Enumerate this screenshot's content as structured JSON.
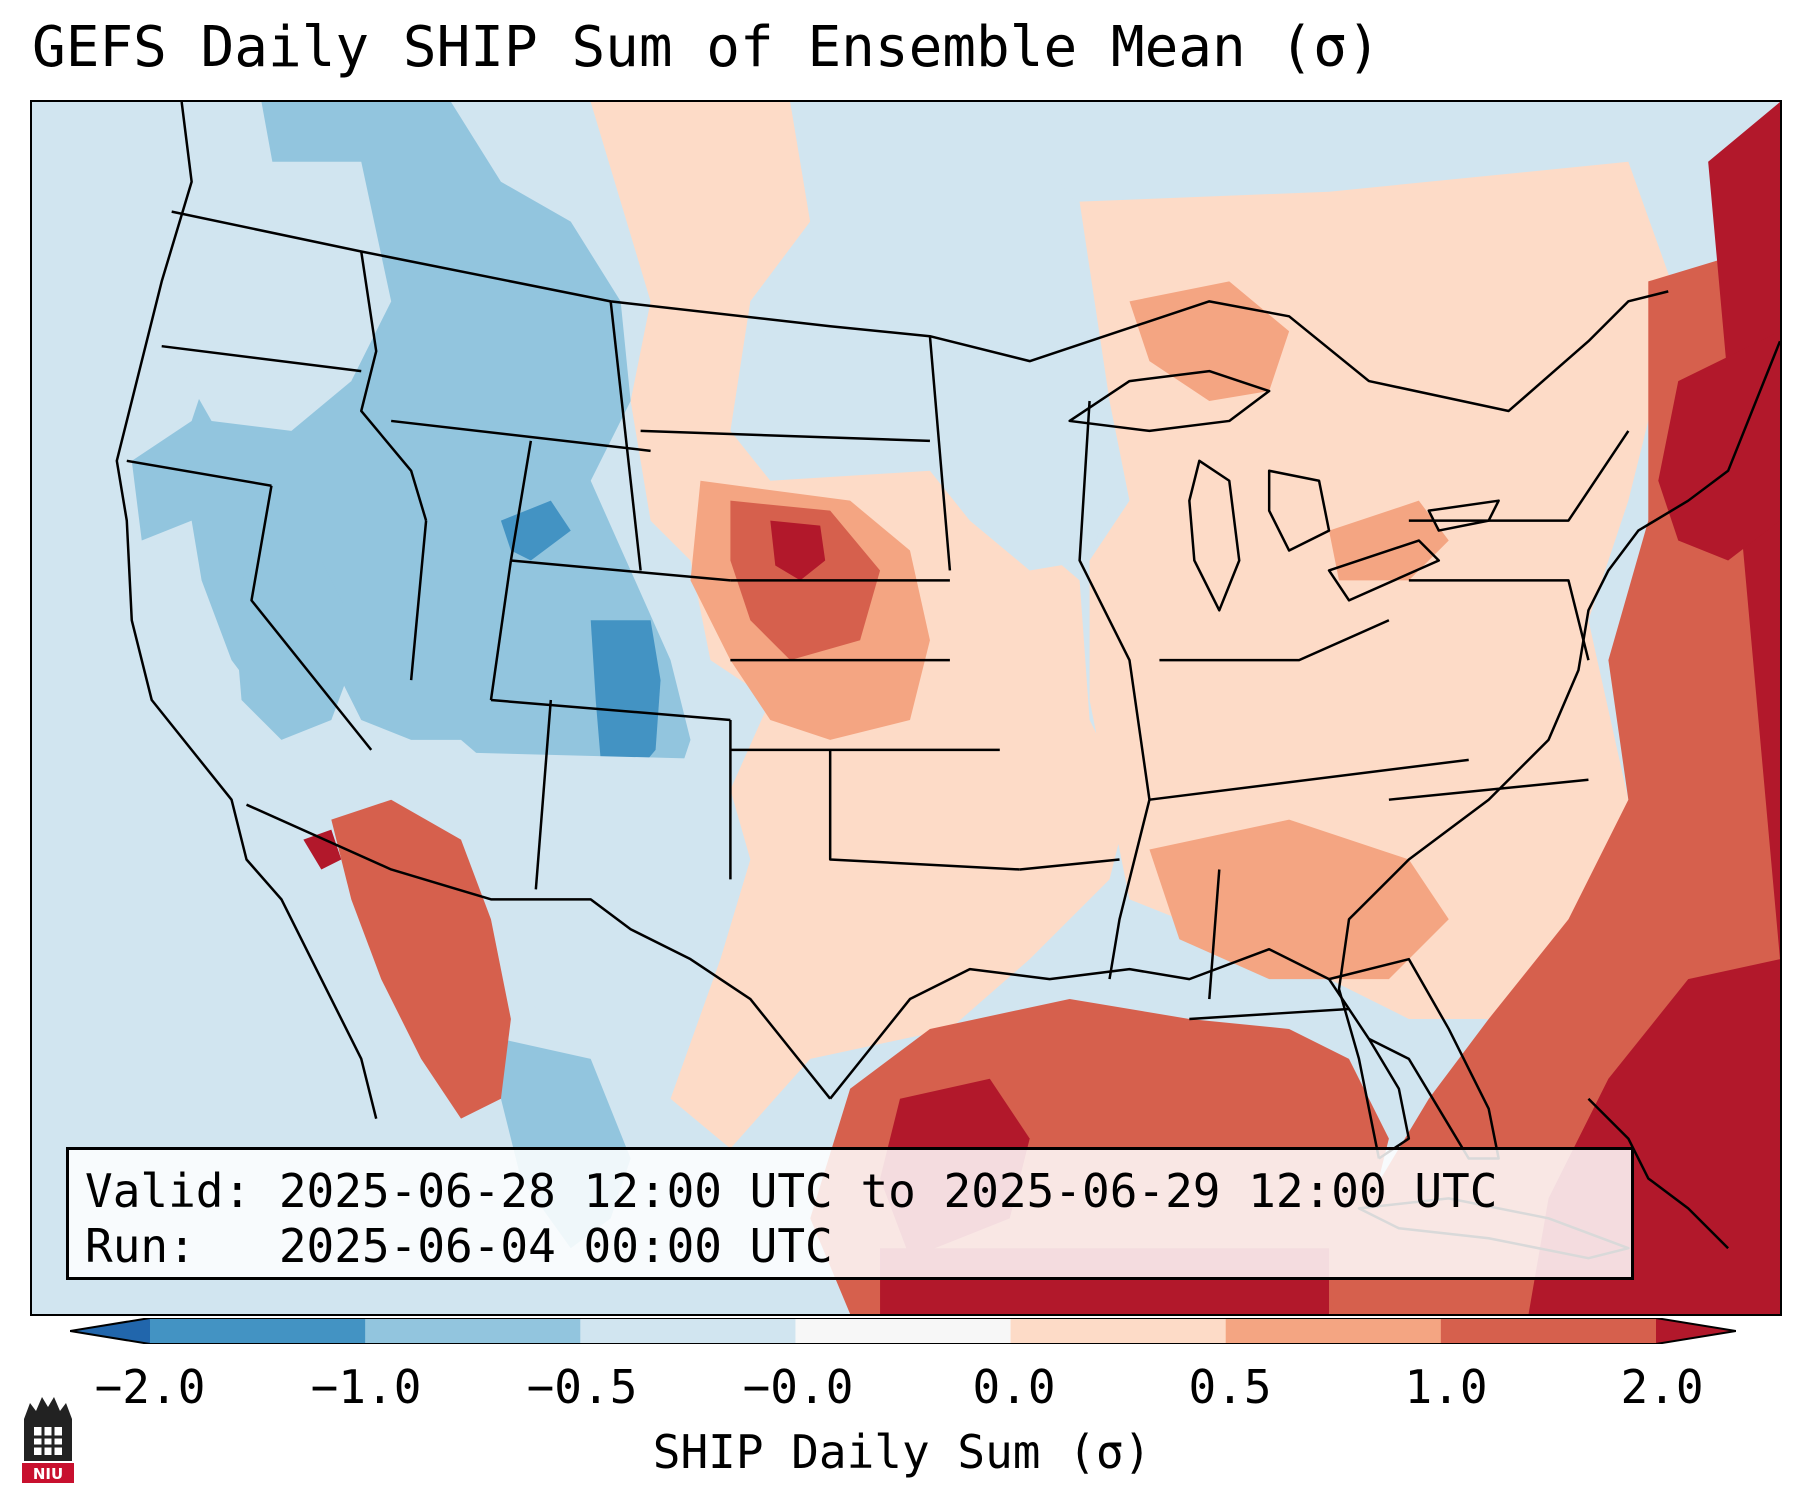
{
  "title": "GEFS Daily SHIP Sum of Ensemble Mean (σ)",
  "info": {
    "valid_line": "Valid: 2025-06-28 12:00 UTC to 2025-06-29 12:00 UTC",
    "run_line": "Run:   2025-06-04 00:00 UTC"
  },
  "colorbar": {
    "label": "SHIP Daily Sum (σ)",
    "ticks": [
      "−2.0",
      "−1.0",
      "−0.5",
      "−0.0",
      "0.0",
      "0.5",
      "1.0",
      "2.0"
    ],
    "bins": [
      {
        "range": "< -2.0",
        "color": "#2166ac"
      },
      {
        "range": "-2.0 to -1.0",
        "color": "#4393c3"
      },
      {
        "range": "-1.0 to -0.5",
        "color": "#92c5de"
      },
      {
        "range": "-0.5 to -0.0",
        "color": "#d1e5f0"
      },
      {
        "range": "-0.0 to 0.0",
        "color": "#f7f7f7"
      },
      {
        "range": "0.0 to 0.5",
        "color": "#fddbc7"
      },
      {
        "range": "0.5 to 1.0",
        "color": "#f4a582"
      },
      {
        "range": "1.0 to 2.0",
        "color": "#d6604d"
      },
      {
        "range": "> 2.0",
        "color": "#b2182b"
      }
    ]
  },
  "logo": {
    "text": "NIU"
  }
}
